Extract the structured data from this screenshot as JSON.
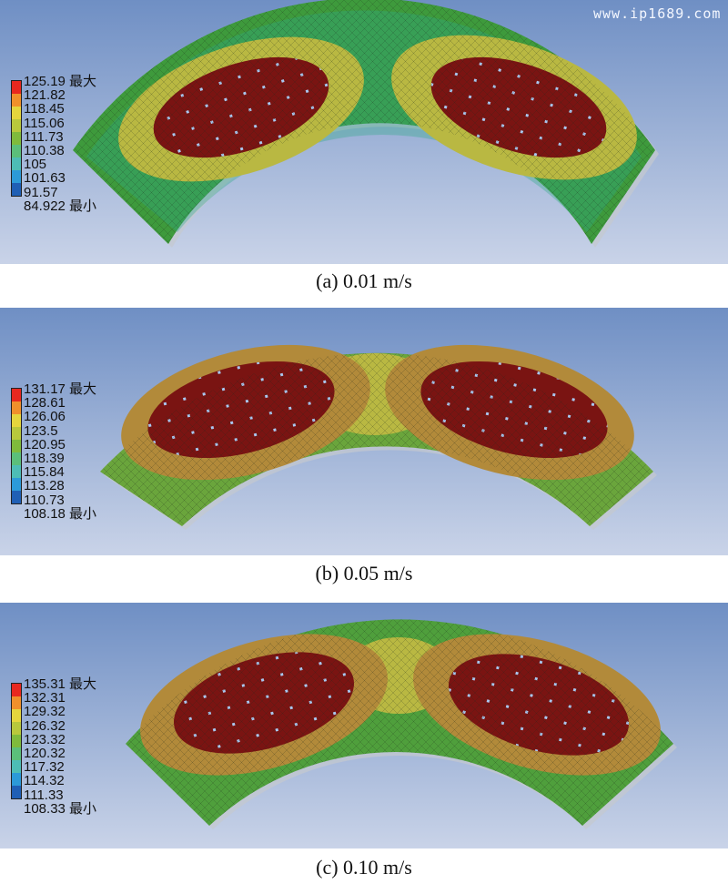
{
  "watermark": "www.ip1689.com",
  "colors": {
    "scale": [
      "#e8281f",
      "#f0902b",
      "#e5d63d",
      "#b8c83c",
      "#7fbb3c",
      "#5bbf7a",
      "#4dbdb5",
      "#2c9ad8",
      "#1f5fb5"
    ],
    "hot": "#7a1412",
    "ring_green": "#3e9a3c",
    "ring_yellow": "#b9b842",
    "background_top": "#6f8fc4",
    "background_bottom": "#c9d3e8"
  },
  "panels": [
    {
      "caption": "(a) 0.01 m/s",
      "legend": [
        "125.19 最大",
        "121.82",
        "118.45",
        "115.06",
        "111.73",
        "110.38",
        "105",
        "101.63",
        "91.57",
        "84.922 最小"
      ]
    },
    {
      "caption": "(b) 0.05 m/s",
      "legend": [
        "131.17 最大",
        "128.61",
        "126.06",
        "123.5",
        "120.95",
        "118.39",
        "115.84",
        "113.28",
        "110.73",
        "108.18 最小"
      ]
    },
    {
      "caption": "(c) 0.10 m/s",
      "legend": [
        "135.31 最大",
        "132.31",
        "129.32",
        "126.32",
        "123.32",
        "120.32",
        "117.32",
        "114.32",
        "111.33",
        "108.33 最小"
      ]
    }
  ]
}
